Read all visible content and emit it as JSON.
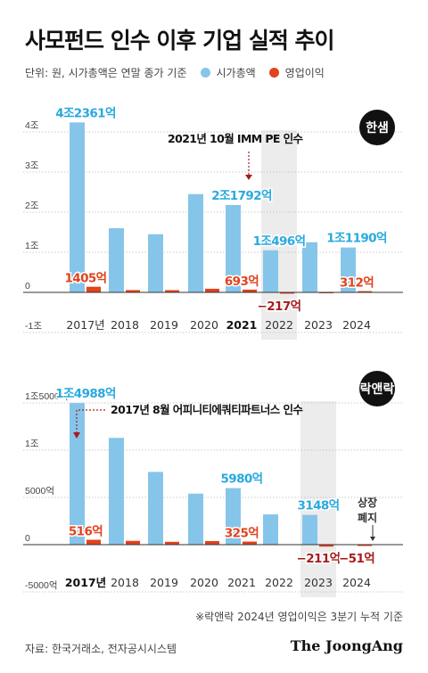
{
  "title": "사모펀드 인수 이후 기업 실적 추이",
  "legend": {
    "note": "단위: 원, 시가총액은 연말 종가 기준",
    "items": [
      {
        "label": "시가총액",
        "color": "#86c5ea"
      },
      {
        "label": "영업이익",
        "color": "#e2421c"
      }
    ]
  },
  "source": "자료: 한국거래소, 전자공시시스템",
  "logo": "The JoongAng",
  "footnote": "※락앤락 2024년 영업이익은 3분기 누적 기준",
  "colors": {
    "market_cap": "#86c5ea",
    "profit": "#e2421c",
    "label_blue": "#29a9df",
    "label_red": "#e2421c",
    "label_neg": "#a61d1d",
    "badge": "#111111",
    "shade": "#ececec"
  },
  "chart_data": [
    {
      "type": "bar",
      "company": "한샘",
      "categories": [
        "2017년",
        "2018",
        "2019",
        "2020",
        "2021",
        "2022",
        "2023",
        "2024"
      ],
      "bold_category": "2021",
      "shaded_category": "2022",
      "series": [
        {
          "name": "시가총액",
          "unit": "억",
          "values": [
            42361,
            16000,
            14500,
            24500,
            21792,
            10496,
            12500,
            11190
          ]
        },
        {
          "name": "영업이익",
          "unit": "억",
          "values": [
            1405,
            570,
            550,
            900,
            693,
            -217,
            100,
            312
          ]
        }
      ],
      "ylim": [
        -10000,
        40000
      ],
      "yticks": [
        {
          "value": 40000,
          "label": "4조"
        },
        {
          "value": 30000,
          "label": "3조"
        },
        {
          "value": 20000,
          "label": "2조"
        },
        {
          "value": 10000,
          "label": "1조"
        },
        {
          "value": 0,
          "label": "0"
        },
        {
          "value": -10000,
          "label": "-1조"
        }
      ],
      "data_labels": [
        {
          "series": 0,
          "index": 0,
          "text": "4조2361억"
        },
        {
          "series": 0,
          "index": 4,
          "text": "2조1792억"
        },
        {
          "series": 0,
          "index": 5,
          "text": "1조496억"
        },
        {
          "series": 0,
          "index": 7,
          "text": "1조1190억"
        },
        {
          "series": 1,
          "index": 0,
          "text": "1405억"
        },
        {
          "series": 1,
          "index": 4,
          "text": "693억"
        },
        {
          "series": 1,
          "index": 5,
          "text": "−217억"
        },
        {
          "series": 1,
          "index": 7,
          "text": "312억"
        }
      ],
      "annotation": {
        "text": "2021년 10월 IMM PE 인수",
        "index": 4
      }
    },
    {
      "type": "bar",
      "company": "락앤락",
      "categories": [
        "2017년",
        "2018",
        "2019",
        "2020",
        "2021",
        "2022",
        "2023",
        "2024"
      ],
      "bold_category": "2017년",
      "shaded_category": "2023",
      "series": [
        {
          "name": "시가총액",
          "unit": "억",
          "values": [
            14988,
            11300,
            7700,
            5400,
            5980,
            3200,
            3148,
            null
          ]
        },
        {
          "name": "영업이익",
          "unit": "억",
          "values": [
            516,
            400,
            300,
            380,
            325,
            0,
            -211,
            -51
          ]
        }
      ],
      "ylim": [
        -5000,
        15000
      ],
      "yticks": [
        {
          "value": 15000,
          "label": "1조5000억"
        },
        {
          "value": 10000,
          "label": "1조"
        },
        {
          "value": 5000,
          "label": "5000억"
        },
        {
          "value": 0,
          "label": "0"
        },
        {
          "value": -5000,
          "label": "-5000억"
        }
      ],
      "data_labels": [
        {
          "series": 0,
          "index": 0,
          "text": "1조4988억"
        },
        {
          "series": 0,
          "index": 4,
          "text": "5980억"
        },
        {
          "series": 0,
          "index": 6,
          "text": "3148억"
        },
        {
          "series": 1,
          "index": 0,
          "text": "516억"
        },
        {
          "series": 1,
          "index": 4,
          "text": "325억"
        },
        {
          "series": 1,
          "index": 6,
          "text": "−211억"
        },
        {
          "series": 1,
          "index": 7,
          "text": "−51억"
        }
      ],
      "annotation": {
        "text": "2017년 8월 어피니티에쿼티파트너스 인수",
        "index": 0
      },
      "side_note": {
        "text": [
          "상장",
          "폐지"
        ],
        "index": 7
      }
    }
  ]
}
